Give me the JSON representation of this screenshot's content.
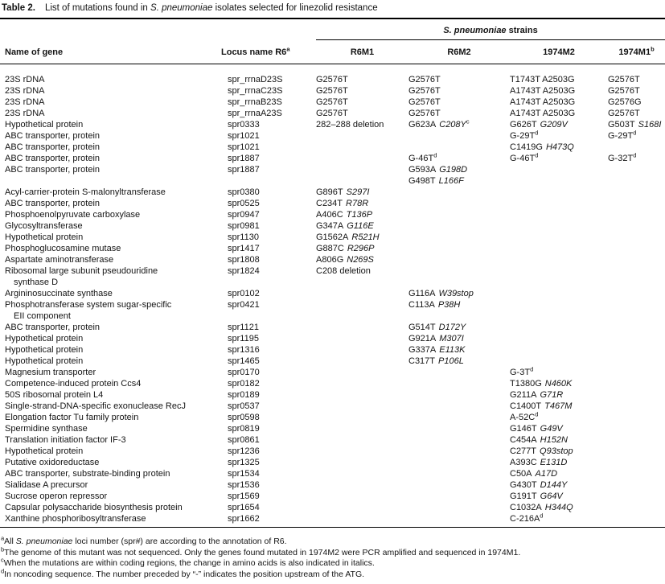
{
  "title": {
    "label": "Table 2.",
    "text_pre": "List of mutations found in ",
    "text_it": "S. pneumoniae",
    "text_post": " isolates selected for linezolid resistance"
  },
  "header": {
    "strains_group": {
      "it": "S. pneumoniae",
      "rest": " strains"
    },
    "col_gene": "Name of gene",
    "col_locus": {
      "text": "Locus name R6",
      "sup": "a"
    },
    "strains": [
      {
        "text": "R6M1",
        "sup": ""
      },
      {
        "text": "R6M2",
        "sup": ""
      },
      {
        "text": "1974M2",
        "sup": ""
      },
      {
        "text": "1974M1",
        "sup": "b"
      }
    ]
  },
  "table": {
    "rows": [
      {
        "gene": "23S rDNA",
        "gene2": "",
        "locus": "spr_rrnaD23S",
        "c1": {
          "m": "G2576T"
        },
        "c2": {
          "m": "G2576T"
        },
        "c3": {
          "m": "T1743T A2503G"
        },
        "c4": {
          "m": "G2576T"
        }
      },
      {
        "gene": "23S rDNA",
        "gene2": "",
        "locus": "spr_rrnaC23S",
        "c1": {
          "m": "G2576T"
        },
        "c2": {
          "m": "G2576T"
        },
        "c3": {
          "m": "A1743T A2503G"
        },
        "c4": {
          "m": "G2576T"
        }
      },
      {
        "gene": "23S rDNA",
        "gene2": "",
        "locus": "spr_rrnaB23S",
        "c1": {
          "m": "G2576T"
        },
        "c2": {
          "m": "G2576T"
        },
        "c3": {
          "m": "A1743T A2503G"
        },
        "c4": {
          "m": "G2576G"
        }
      },
      {
        "gene": "23S rDNA",
        "gene2": "",
        "locus": "spr_rrnaA23S",
        "c1": {
          "m": "G2576T"
        },
        "c2": {
          "m": "G2576T"
        },
        "c3": {
          "m": "A1743T A2503G"
        },
        "c4": {
          "m": "G2576T"
        }
      },
      {
        "gene": "Hypothetical protein",
        "gene2": "",
        "locus": "spr0333",
        "c1": {
          "m": "282–288 deletion"
        },
        "c2": {
          "m": "G623A",
          "a": "C208Y",
          "s": "c"
        },
        "c3": {
          "m": "G626T",
          "a": "G209V"
        },
        "c4": {
          "m": "G503T",
          "a": "S168I"
        }
      },
      {
        "gene": "ABC transporter, protein",
        "gene2": "",
        "locus": "spr1021",
        "c3": {
          "m": "G-29T",
          "s": "d"
        },
        "c4": {
          "m": "G-29T",
          "s": "d"
        }
      },
      {
        "gene": "ABC transporter, protein",
        "gene2": "",
        "locus": "spr1021",
        "c3": {
          "m": "C1419G",
          "a": "H473Q"
        }
      },
      {
        "gene": "ABC transporter, protein",
        "gene2": "",
        "locus": "spr1887",
        "c2": {
          "m": "G-46T",
          "s": "d"
        },
        "c3": {
          "m": "G-46T",
          "s": "d"
        },
        "c4": {
          "m": "G-32T",
          "s": "d"
        }
      },
      {
        "gene": "ABC transporter, protein",
        "gene2": "",
        "locus": "spr1887",
        "c2": {
          "m": "G593A",
          "a": "G198D"
        }
      },
      {
        "gene": "",
        "gene2": "",
        "locus": "",
        "c2": {
          "m": "G498T",
          "a": "L166F"
        }
      },
      {
        "gene": "Acyl-carrier-protein S-malonyltransferase",
        "gene2": "",
        "locus": "spr0380",
        "c1": {
          "m": "G896T",
          "a": "S297I"
        }
      },
      {
        "gene": "ABC transporter, protein",
        "gene2": "",
        "locus": "spr0525",
        "c1": {
          "m": "C234T",
          "a": "R78R"
        }
      },
      {
        "gene": "Phosphoenolpyruvate carboxylase",
        "gene2": "",
        "locus": "spr0947",
        "c1": {
          "m": "A406C",
          "a": "T136P"
        }
      },
      {
        "gene": "Glycosyltransferase",
        "gene2": "",
        "locus": "spr0981",
        "c1": {
          "m": "G347A",
          "a": "G116E"
        }
      },
      {
        "gene": "Hypothetical protein",
        "gene2": "",
        "locus": "spr1130",
        "c1": {
          "m": "G1562A",
          "a": "R521H"
        }
      },
      {
        "gene": "Phosphoglucosamine mutase",
        "gene2": "",
        "locus": "spr1417",
        "c1": {
          "m": "G887C",
          "a": "R296P"
        }
      },
      {
        "gene": "Aspartate aminotransferase",
        "gene2": "",
        "locus": "spr1808",
        "c1": {
          "m": "A806G",
          "a": "N269S"
        }
      },
      {
        "gene": "Ribosomal large subunit pseudouridine",
        "gene2": "synthase D",
        "locus": "spr1824",
        "c1": {
          "m": "C208 deletion"
        }
      },
      {
        "gene": "Argininosuccinate synthase",
        "gene2": "",
        "locus": "spr0102",
        "c2": {
          "m": "G116A",
          "a": "W39stop"
        }
      },
      {
        "gene": "Phosphotransferase system sugar-specific",
        "gene2": "EII component",
        "locus": "spr0421",
        "c2": {
          "m": "C113A",
          "a": "P38H"
        }
      },
      {
        "gene": "ABC transporter, protein",
        "gene2": "",
        "locus": "spr1121",
        "c2": {
          "m": "G514T",
          "a": "D172Y"
        }
      },
      {
        "gene": "Hypothetical protein",
        "gene2": "",
        "locus": "spr1195",
        "c2": {
          "m": "G921A",
          "a": "M307I"
        }
      },
      {
        "gene": "Hypothetical protein",
        "gene2": "",
        "locus": "spr1316",
        "c2": {
          "m": "G337A",
          "a": "E113K"
        }
      },
      {
        "gene": "Hypothetical protein",
        "gene2": "",
        "locus": "spr1465",
        "c2": {
          "m": "C317T",
          "a": "P106L"
        }
      },
      {
        "gene": "Magnesium transporter",
        "gene2": "",
        "locus": "spr0170",
        "c3": {
          "m": "G-3T",
          "s": "d"
        }
      },
      {
        "gene": "Competence-induced protein Ccs4",
        "gene2": "",
        "locus": "spr0182",
        "c3": {
          "m": "T1380G",
          "a": "N460K"
        }
      },
      {
        "gene": "50S ribosomal protein L4",
        "gene2": "",
        "locus": "spr0189",
        "c3": {
          "m": "G211A",
          "a": "G71R"
        }
      },
      {
        "gene": "Single-strand-DNA-specific exonuclease RecJ",
        "gene2": "",
        "locus": "spr0537",
        "c3": {
          "m": "C1400T",
          "a": "T467M"
        }
      },
      {
        "gene": "Elongation factor Tu family protein",
        "gene2": "",
        "locus": "spr0598",
        "c3": {
          "m": "A-52C",
          "s": "d"
        }
      },
      {
        "gene": "Spermidine synthase",
        "gene2": "",
        "locus": "spr0819",
        "c3": {
          "m": "G146T",
          "a": "G49V"
        }
      },
      {
        "gene": "Translation initiation factor IF-3",
        "gene2": "",
        "locus": "spr0861",
        "c3": {
          "m": "C454A",
          "a": "H152N"
        }
      },
      {
        "gene": "Hypothetical protein",
        "gene2": "",
        "locus": "spr1236",
        "c3": {
          "m": "C277T",
          "a": "Q93stop"
        }
      },
      {
        "gene": "Putative oxidoreductase",
        "gene2": "",
        "locus": "spr1325",
        "c3": {
          "m": "A393C",
          "a": "E131D"
        }
      },
      {
        "gene": "ABC transporter, substrate-binding protein",
        "gene2": "",
        "locus": "spr1534",
        "c3": {
          "m": "C50A",
          "a": "A17D"
        }
      },
      {
        "gene": "Sialidase A precursor",
        "gene2": "",
        "locus": "spr1536",
        "c3": {
          "m": "G430T",
          "a": "D144Y"
        }
      },
      {
        "gene": "Sucrose operon repressor",
        "gene2": "",
        "locus": "spr1569",
        "c3": {
          "m": "G191T",
          "a": "G64V"
        }
      },
      {
        "gene": "Capsular polysaccharide biosynthesis protein",
        "gene2": "",
        "locus": "spr1654",
        "c3": {
          "m": "C1032A",
          "a": "H344Q"
        }
      },
      {
        "gene": "Xanthine phosphoribosyltransferase",
        "gene2": "",
        "locus": "spr1662",
        "c3": {
          "m": "C-216A",
          "s": "d"
        }
      }
    ]
  },
  "footnotes": [
    {
      "s": "a",
      "pre": "All ",
      "it": "S. pneumoniae",
      "post": " loci number (spr#) are according to the annotation of R6."
    },
    {
      "s": "b",
      "pre": "The genome of this mutant was not sequenced. Only the genes found mutated in 1974M2 were PCR amplified and sequenced in 1974M1.",
      "it": "",
      "post": ""
    },
    {
      "s": "c",
      "pre": "When the mutations are within coding regions, the change in amino acids is also indicated in italics.",
      "it": "",
      "post": ""
    },
    {
      "s": "d",
      "pre": "In noncoding sequence. The number preceded by “-” indicates the position upstream of the ATG.",
      "it": "",
      "post": ""
    }
  ]
}
